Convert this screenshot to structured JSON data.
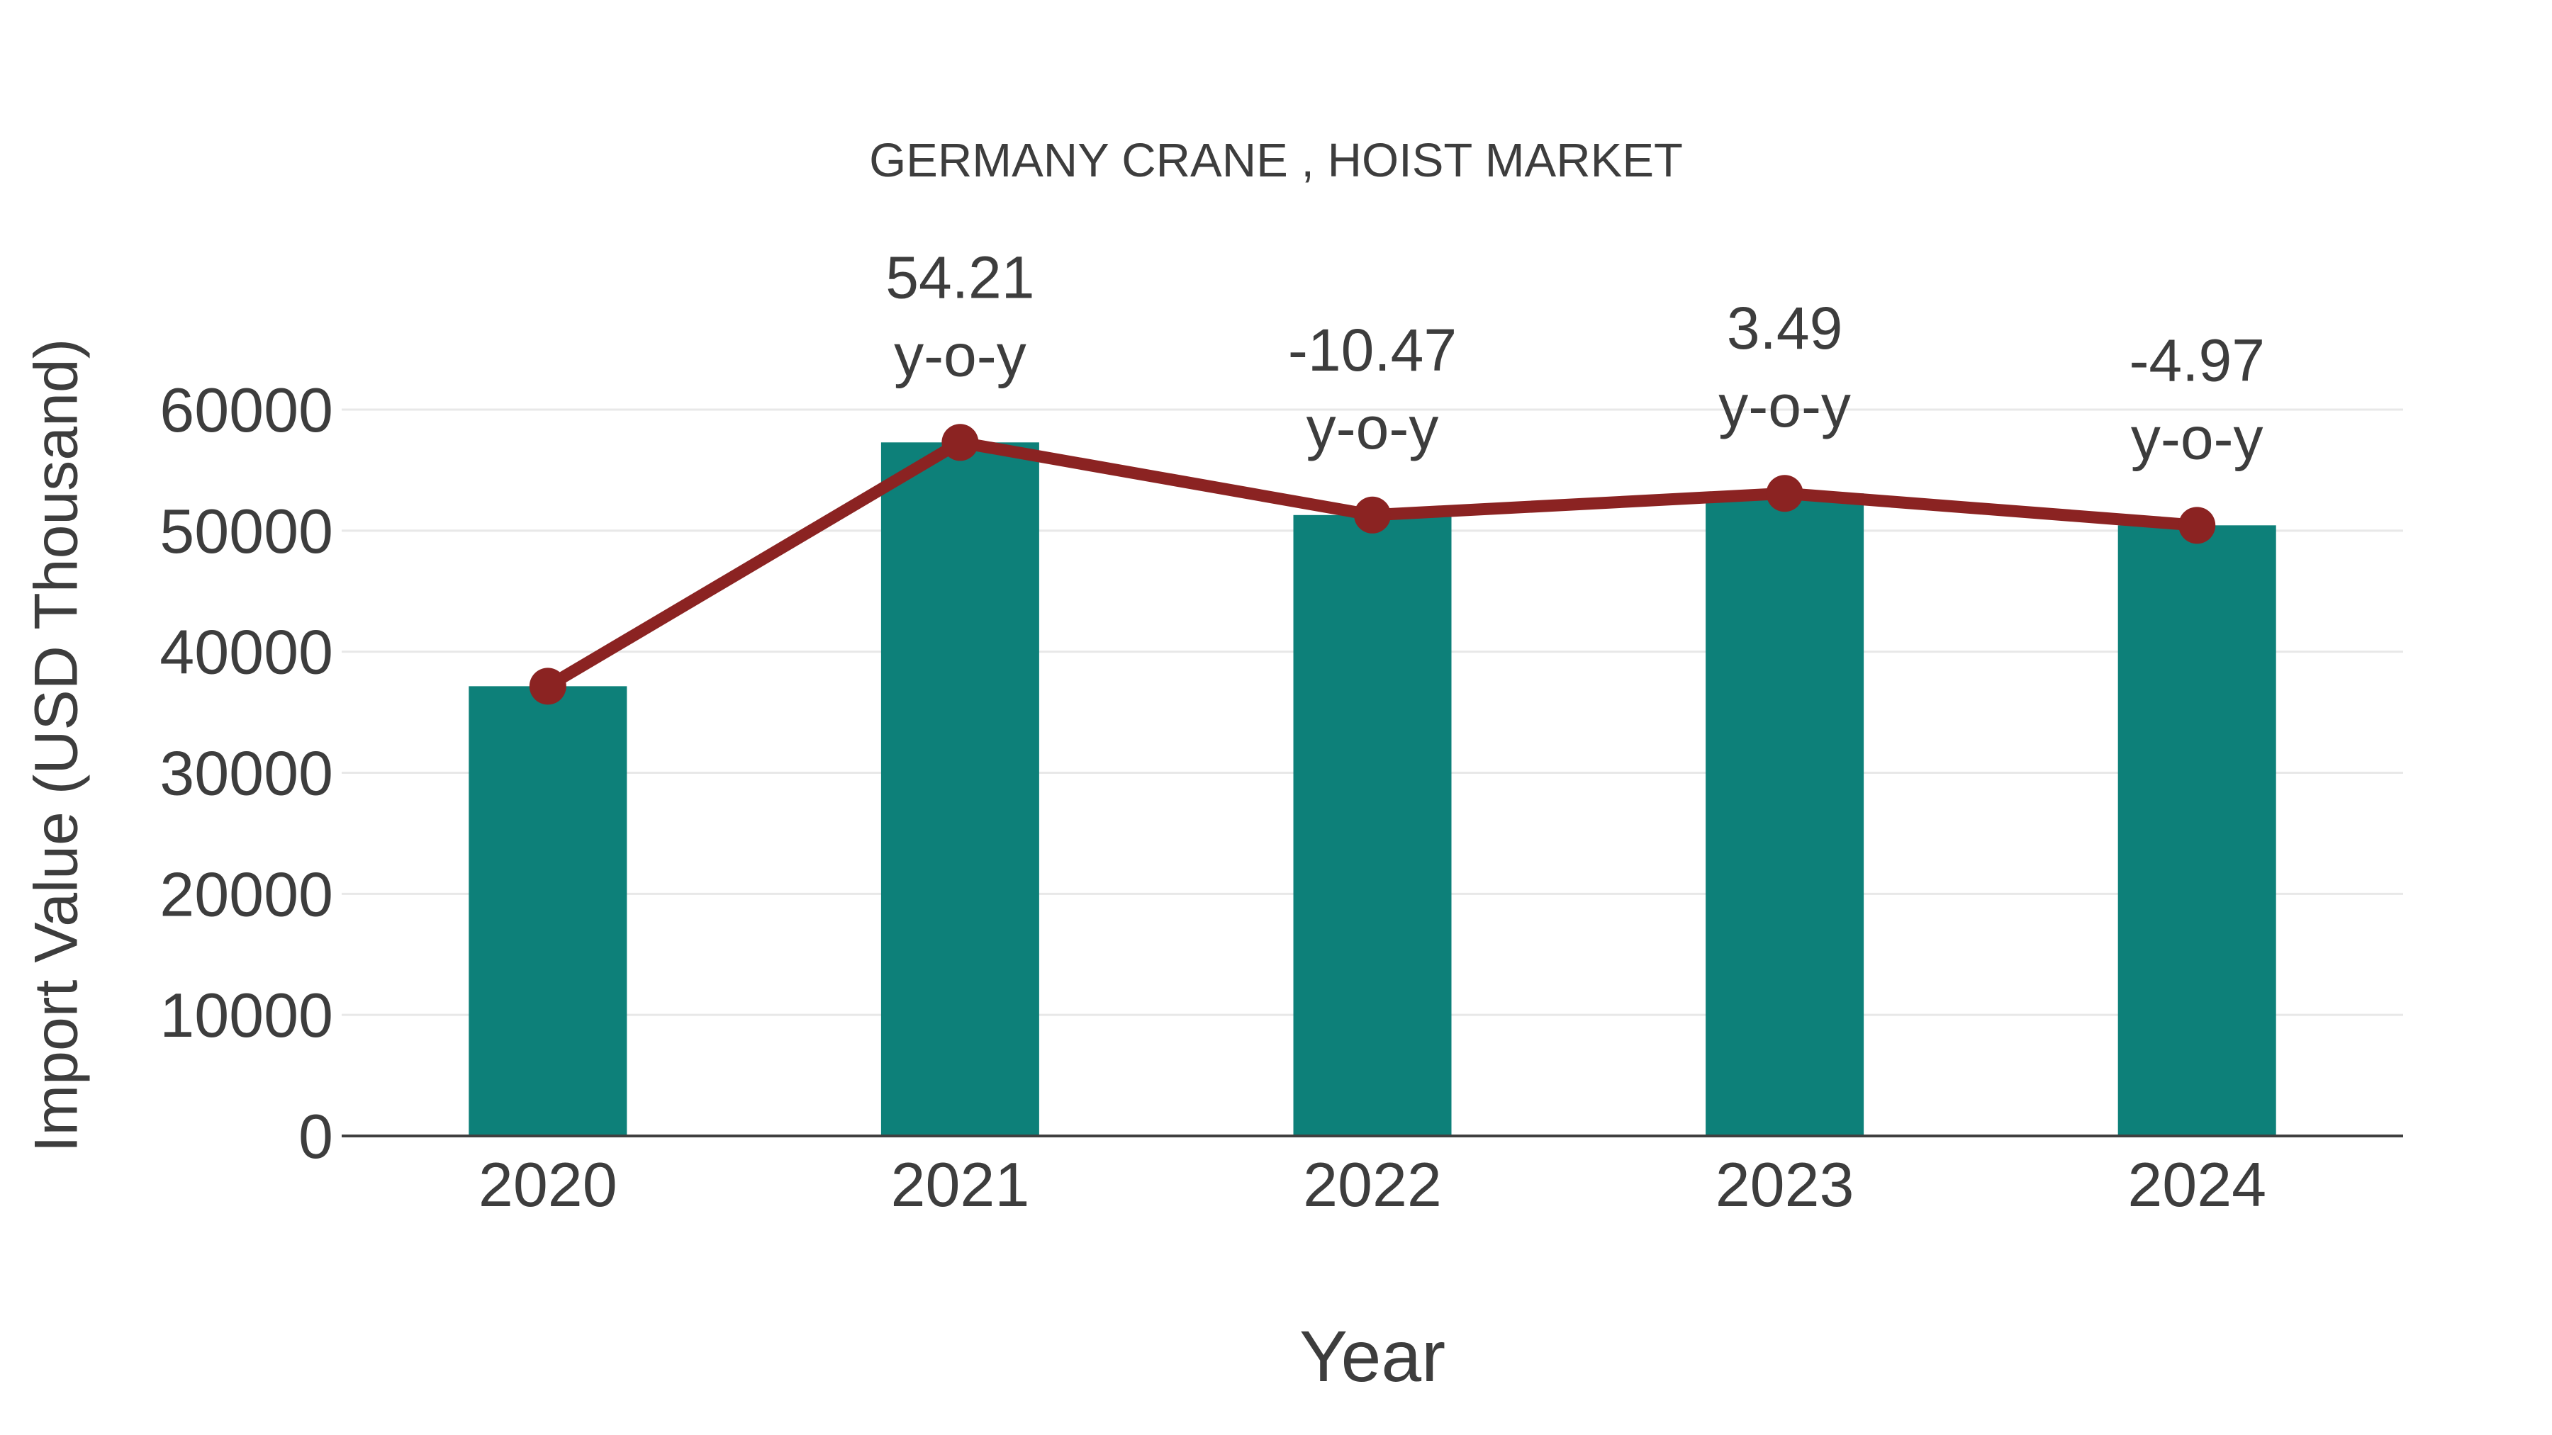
{
  "chart_data": {
    "type": "bar",
    "title": "GERMANY CRANE , HOIST MARKET",
    "xlabel": "Year",
    "ylabel": "Import Value (USD Thousand)",
    "categories": [
      "2020",
      "2021",
      "2022",
      "2023",
      "2024"
    ],
    "series": [
      {
        "name": "import-value-bars",
        "type": "bar",
        "values": [
          37150,
          57290,
          51290,
          53080,
          50440
        ]
      },
      {
        "name": "import-value-trend-line",
        "type": "line",
        "values": [
          37150,
          57290,
          51290,
          53080,
          50440
        ]
      }
    ],
    "annotations": [
      {
        "category": "2021",
        "value": "54.21",
        "label": "y-o-y"
      },
      {
        "category": "2022",
        "value": "-10.47",
        "label": "y-o-y"
      },
      {
        "category": "2023",
        "value": "3.49",
        "label": "y-o-y"
      },
      {
        "category": "2024",
        "value": "-4.97",
        "label": "y-o-y"
      }
    ],
    "yticks": [
      0,
      10000,
      20000,
      30000,
      40000,
      50000,
      60000
    ],
    "ylim": [
      0,
      60000
    ],
    "grid": "horizontal",
    "legend": "none"
  },
  "colors": {
    "bar": "#0D8079",
    "line": "#8B2322",
    "grid": "#E8E8E8",
    "axis": "#3F3F3F",
    "text": "#3D3D3D"
  }
}
